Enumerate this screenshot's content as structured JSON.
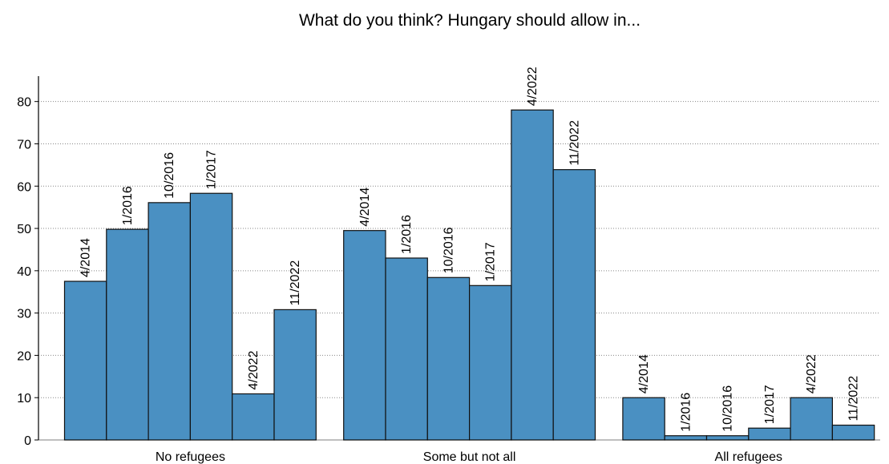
{
  "chart_data": {
    "type": "bar",
    "title": "What do you think? Hungary should allow in...",
    "xlabel": "",
    "ylabel": "",
    "ylim": [
      0,
      86
    ],
    "yticks": [
      0,
      10,
      20,
      30,
      40,
      50,
      60,
      70,
      80
    ],
    "grid": true,
    "bar_color": "#4a90c2",
    "categories": [
      "No refugees",
      "Some but not all",
      "All refugees"
    ],
    "series": [
      {
        "name": "4/2014",
        "values": [
          37.5,
          49.5,
          10
        ]
      },
      {
        "name": "1/2016",
        "values": [
          49.8,
          43,
          1
        ]
      },
      {
        "name": "10/2016",
        "values": [
          56.1,
          38.4,
          1
        ]
      },
      {
        "name": "1/2017",
        "values": [
          58.3,
          36.5,
          2.8
        ]
      },
      {
        "name": "4/2022",
        "values": [
          10.9,
          78,
          10
        ]
      },
      {
        "name": "11/2022",
        "values": [
          30.8,
          63.9,
          3.5
        ]
      }
    ]
  }
}
